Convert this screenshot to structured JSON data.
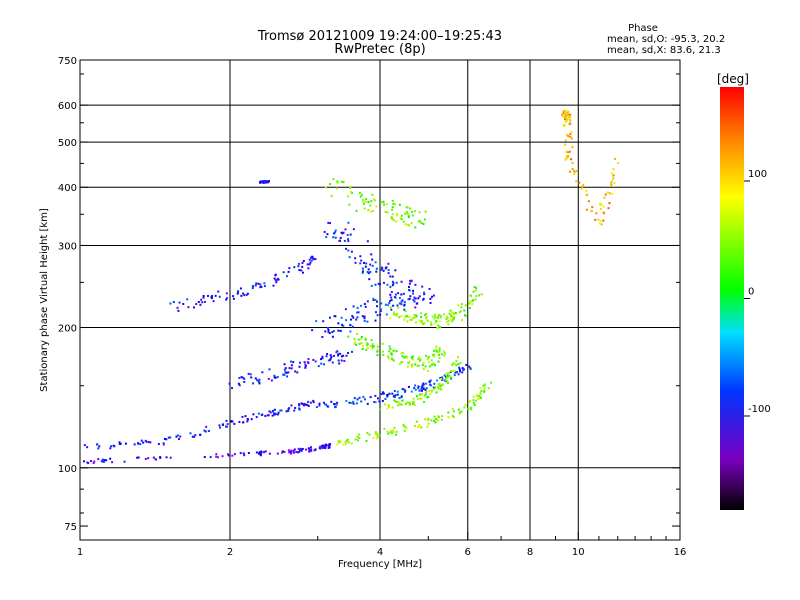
{
  "chart_data": {
    "type": "scatter",
    "title": "Tromsø 20121009 19:24:00–19:25:43",
    "subtitle": "RwPretec (8p)",
    "xlabel": "Frequency [MHz]",
    "ylabel": "Stationary phase Virtual Height [km]",
    "x_scale": "log",
    "y_scale": "log",
    "xlim": [
      1,
      16
    ],
    "ylim": [
      70,
      750
    ],
    "x_ticks": [
      1,
      2,
      4,
      6,
      8,
      10,
      16
    ],
    "x_tick_labels": [
      "1",
      "2",
      "4",
      "6",
      "8",
      "10",
      "16"
    ],
    "y_ticks": [
      75,
      100,
      200,
      300,
      400,
      500,
      600,
      750
    ],
    "y_tick_labels": [
      "75",
      "100",
      "200",
      "300",
      "400",
      "500",
      "600",
      "750"
    ],
    "x_gridlines": [
      2,
      4,
      6,
      8,
      10
    ],
    "y_gridlines": [
      100,
      200,
      300,
      400,
      500,
      600
    ],
    "grid": true,
    "annotation": {
      "heading": "Phase",
      "line1": "mean, sd,O: -95.3, 20.2",
      "line2": "mean, sd,X:  83.6, 21.3"
    },
    "colorbar": {
      "unit": "[deg]",
      "range": [
        -180,
        180
      ],
      "ticks": [
        100,
        0,
        -100
      ],
      "tick_labels": [
        "100",
        "0",
        "-100"
      ]
    },
    "traces": [
      {
        "x": [
          1.0,
          1.8,
          2.6,
          3.0,
          3.2
        ],
        "y": [
          103,
          106,
          108,
          110,
          112
        ],
        "phase": -105,
        "spread": 2
      },
      {
        "x": [
          3.2,
          4.0,
          5.0,
          6.0,
          6.6
        ],
        "y": [
          112,
          118,
          125,
          135,
          150
        ],
        "phase": 85,
        "spread": 4
      },
      {
        "x": [
          1.0,
          1.5,
          2.0,
          2.5,
          3.0
        ],
        "y": [
          110,
          114,
          125,
          132,
          138
        ],
        "phase": -95,
        "spread": 3
      },
      {
        "x": [
          3.0,
          3.8,
          4.5,
          5.2,
          6.0
        ],
        "y": [
          135,
          140,
          145,
          152,
          165
        ],
        "phase": -80,
        "spread": 4
      },
      {
        "x": [
          4.0,
          4.8,
          5.3,
          5.8
        ],
        "y": [
          135,
          140,
          150,
          170
        ],
        "phase": 80,
        "spread": 4
      },
      {
        "x": [
          2.0,
          2.5,
          3.0,
          3.5
        ],
        "y": [
          150,
          160,
          170,
          175
        ],
        "phase": -95,
        "spread": 6
      },
      {
        "x": [
          3.5,
          4.0,
          4.5,
          5.0,
          5.3
        ],
        "y": [
          190,
          180,
          170,
          165,
          180
        ],
        "phase": 75,
        "spread": 6
      },
      {
        "x": [
          1.5,
          2.0,
          2.5,
          3.0
        ],
        "y": [
          220,
          235,
          255,
          280
        ],
        "phase": -95,
        "spread": 5
      },
      {
        "x": [
          3.0,
          3.5,
          4.0,
          4.5
        ],
        "y": [
          195,
          210,
          220,
          230
        ],
        "phase": -85,
        "spread": 10
      },
      {
        "x": [
          4.2,
          4.8,
          5.3,
          5.8,
          6.3
        ],
        "y": [
          215,
          210,
          205,
          215,
          240
        ],
        "phase": 80,
        "spread": 6
      },
      {
        "x": [
          3.2,
          3.6,
          4.0,
          4.5,
          5.0
        ],
        "y": [
          330,
          290,
          260,
          240,
          230
        ],
        "phase": -90,
        "spread": 12
      },
      {
        "x": [
          3.2,
          3.8,
          4.4,
          5.0
        ],
        "y": [
          400,
          370,
          350,
          340
        ],
        "phase": 75,
        "spread": 10
      },
      {
        "x": [
          2.3,
          2.4
        ],
        "y": [
          410,
          412
        ],
        "phase": -100,
        "spread": 1
      },
      {
        "x": [
          9.4,
          9.5,
          9.6,
          11.0,
          12.0
        ],
        "y": [
          580,
          560,
          460,
          330,
          470
        ],
        "phase": 130,
        "spread": 4
      }
    ]
  }
}
